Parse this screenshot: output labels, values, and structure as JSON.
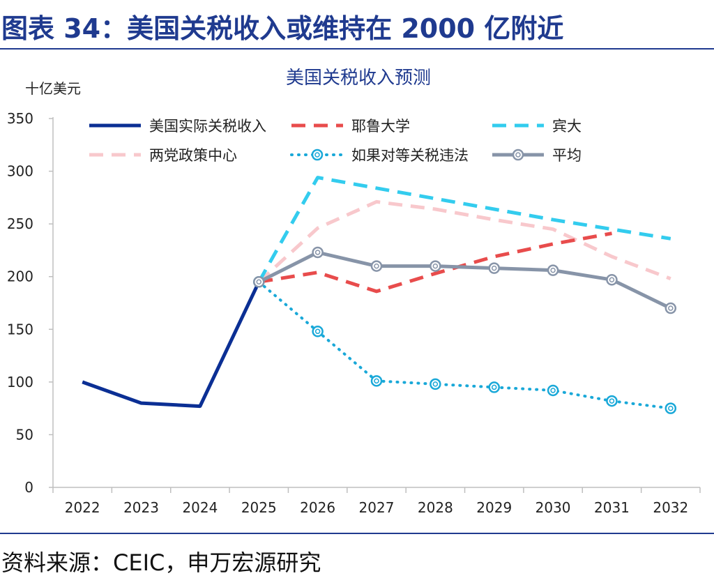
{
  "figure_title": "图表 34：美国关税收入或维持在 2000 亿附近",
  "source": "资料来源：CEIC，申万宏源研究",
  "colors": {
    "title": "#1f3a8f",
    "actual": "#0b2f94",
    "yale": "#e84c4c",
    "penn": "#33ccee",
    "bipartisan": "#f8c8cc",
    "illegal": "#19a8d8",
    "average": "#8794a8"
  },
  "chart_data": {
    "type": "line",
    "title": "美国关税收入预测",
    "ylabel": "十亿美元",
    "xlabel": "",
    "ylim": [
      0,
      350
    ],
    "yticks": [
      0,
      50,
      100,
      150,
      200,
      250,
      300,
      350
    ],
    "categories": [
      "2022",
      "2023",
      "2024",
      "2025",
      "2026",
      "2027",
      "2028",
      "2029",
      "2030",
      "2031",
      "2032"
    ],
    "series": [
      {
        "name": "美国实际关税收入",
        "key": "actual",
        "style": "solid",
        "marker": false,
        "values": [
          100,
          80,
          77,
          195,
          null,
          null,
          null,
          null,
          null,
          null,
          null
        ]
      },
      {
        "name": "耶鲁大学",
        "key": "yale",
        "style": "dashed",
        "marker": false,
        "values": [
          null,
          null,
          null,
          195,
          204,
          186,
          203,
          219,
          231,
          241,
          null
        ]
      },
      {
        "name": "宾大",
        "key": "penn",
        "style": "dashed",
        "marker": false,
        "values": [
          null,
          null,
          null,
          195,
          294,
          284,
          274,
          264,
          254,
          245,
          236
        ]
      },
      {
        "name": "两党政策中心",
        "key": "bipartisan",
        "style": "dashed",
        "marker": false,
        "values": [
          null,
          null,
          null,
          195,
          246,
          271,
          264,
          254,
          245,
          219,
          198
        ]
      },
      {
        "name": "如果对等关税违法",
        "key": "illegal",
        "style": "dotted",
        "marker": true,
        "values": [
          null,
          null,
          null,
          195,
          148,
          101,
          98,
          95,
          92,
          82,
          75
        ]
      },
      {
        "name": "平均",
        "key": "average",
        "style": "solid",
        "marker": true,
        "values": [
          null,
          null,
          null,
          195,
          223,
          210,
          210,
          208,
          206,
          197,
          170
        ]
      }
    ]
  }
}
